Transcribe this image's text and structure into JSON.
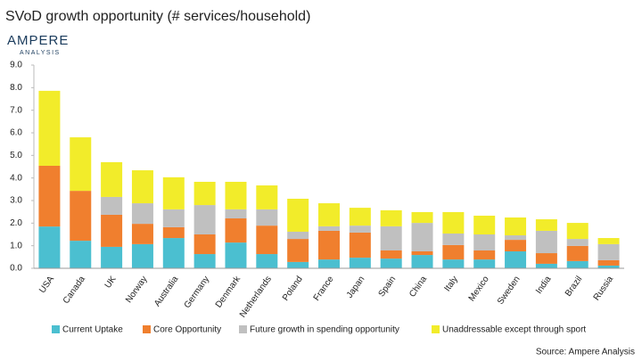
{
  "logo": {
    "name": "AMPERE",
    "sub": "ANALYSIS"
  },
  "source": "Source: Ampere Analysis",
  "chart_data": {
    "type": "stacked_bar",
    "title": "SVoD growth opportunity (# services/household)",
    "categories": [
      "USA",
      "Canada",
      "UK",
      "Norway",
      "Australia",
      "Germany",
      "Denmark",
      "Netherlands",
      "Poland",
      "France",
      "Japan",
      "Spain",
      "China",
      "Italy",
      "Mexico",
      "Sweden",
      "India",
      "Brazil",
      "Russia"
    ],
    "series": [
      {
        "name": "Current Uptake",
        "color": "#4bbfd0",
        "values": [
          1.85,
          1.22,
          0.95,
          1.07,
          1.34,
          0.63,
          1.14,
          0.63,
          0.28,
          0.39,
          0.47,
          0.43,
          0.59,
          0.39,
          0.39,
          0.75,
          0.2,
          0.32,
          0.12
        ]
      },
      {
        "name": "Core Opportunity",
        "color": "#f07f2e",
        "values": [
          2.69,
          2.21,
          1.42,
          0.9,
          0.48,
          0.87,
          1.07,
          1.26,
          1.02,
          1.27,
          1.11,
          0.36,
          0.16,
          0.64,
          0.4,
          0.51,
          0.47,
          0.67,
          0.24
        ]
      },
      {
        "name": "Future growth in spending opportunity",
        "color": "#c0c0c0",
        "values": [
          0,
          0,
          0.79,
          0.91,
          0.79,
          1.3,
          0.4,
          0.72,
          0.32,
          0.2,
          0.31,
          1.07,
          1.26,
          0.51,
          0.71,
          0.2,
          0.99,
          0.31,
          0.71
        ]
      },
      {
        "name": "Unaddressable except through sport",
        "color": "#f2ec2a",
        "values": [
          3.32,
          2.37,
          1.54,
          1.46,
          1.42,
          1.03,
          1.22,
          1.06,
          1.46,
          1.02,
          0.79,
          0.71,
          0.48,
          0.95,
          0.83,
          0.79,
          0.51,
          0.71,
          0.27
        ]
      }
    ],
    "ylim": [
      0,
      9
    ],
    "yticks": [
      {
        "value": 0,
        "label": "0.0"
      },
      {
        "value": 1,
        "label": "1.0"
      },
      {
        "value": 2,
        "label": "2.0"
      },
      {
        "value": 3,
        "label": "3.0"
      },
      {
        "value": 4,
        "label": "4.0"
      },
      {
        "value": 5,
        "label": "5.0"
      },
      {
        "value": 6,
        "label": "6.0"
      },
      {
        "value": 7,
        "label": "7.0"
      },
      {
        "value": 8,
        "label": "8.0"
      },
      {
        "value": 9,
        "label": "9.0"
      }
    ],
    "legend": "bottom"
  }
}
